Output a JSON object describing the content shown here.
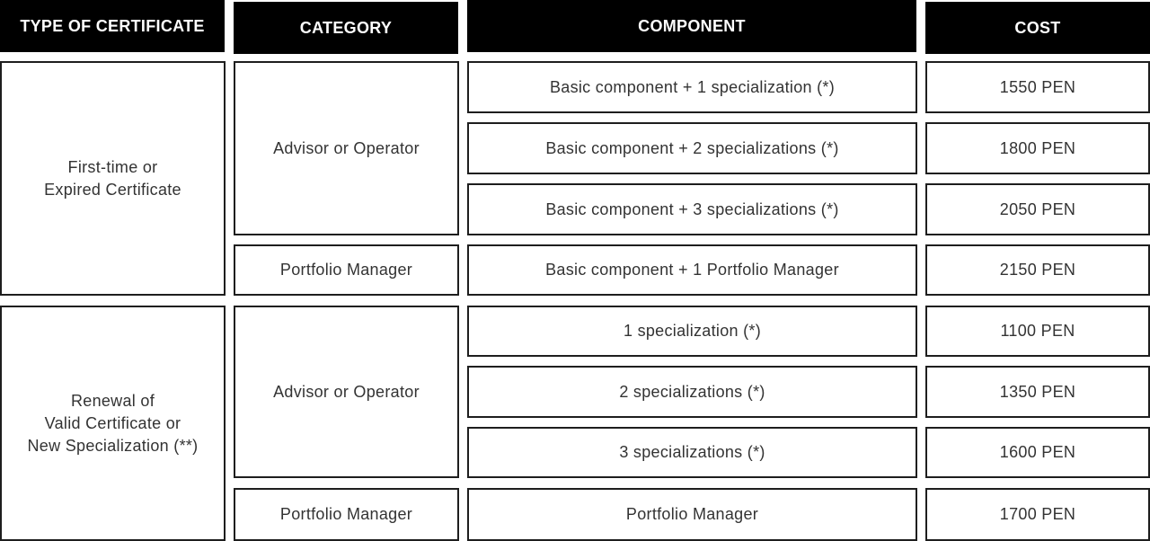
{
  "headers": [
    "TYPE OF CERTIFICATE",
    "CATEGORY",
    "COMPONENT",
    "COST"
  ],
  "groups": [
    {
      "type_line1": "First-time or",
      "type_line2": "Expired Certificate",
      "categories": [
        "Advisor or Operator",
        "Portfolio Manager"
      ],
      "rows": [
        {
          "component": "Basic component + 1 specialization (*)",
          "cost": "1550 PEN"
        },
        {
          "component": "Basic component + 2 specializations (*)",
          "cost": "1800 PEN"
        },
        {
          "component": "Basic component + 3 specializations (*)",
          "cost": "2050 PEN"
        },
        {
          "component": "Basic component + 1 Portfolio Manager",
          "cost": "2150 PEN"
        }
      ]
    },
    {
      "type_line1": "Renewal of",
      "type_line2": "Valid Certificate or",
      "type_line3": "New Specialization (**)",
      "categories": [
        "Advisor or Operator",
        "Portfolio Manager"
      ],
      "rows": [
        {
          "component": "1 specialization (*)",
          "cost": "1100 PEN"
        },
        {
          "component": "2 specializations (*)",
          "cost": "1350 PEN"
        },
        {
          "component": "3 specializations (*)",
          "cost": "1600 PEN"
        },
        {
          "component": "Portfolio Manager",
          "cost": "1700 PEN"
        }
      ]
    }
  ]
}
